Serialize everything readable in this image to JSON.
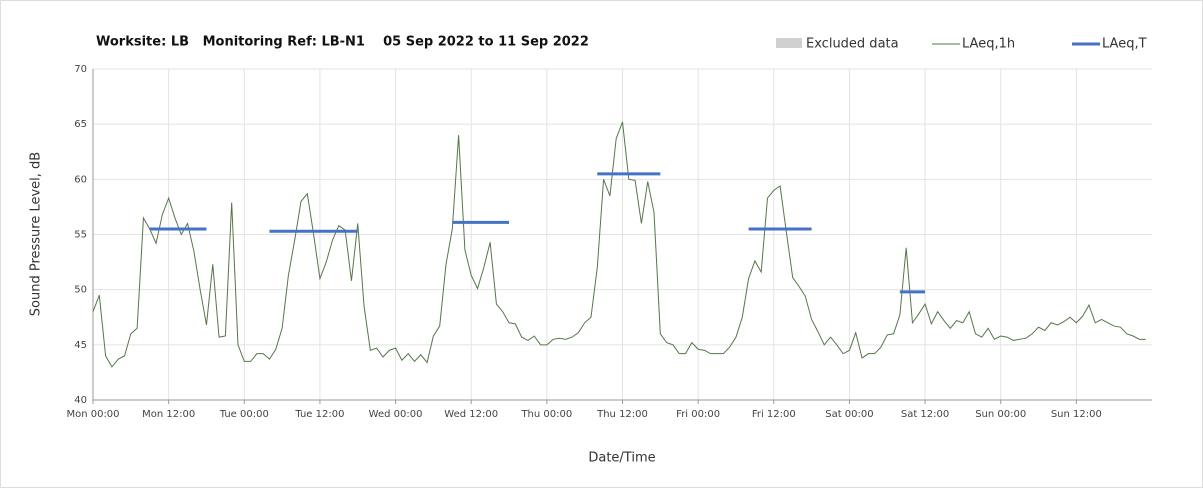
{
  "chart_data": {
    "type": "line",
    "title": "Worksite: LB   Monitoring Ref: LB-N1    05 Sep 2022 to 11 Sep 2022",
    "xlabel": "Date/Time",
    "ylabel": "Sound Pressure Level, dB",
    "xlim": [
      0,
      168
    ],
    "ylim": [
      40,
      70
    ],
    "yticks": [
      40,
      45,
      50,
      55,
      60,
      65,
      70
    ],
    "xticks": [
      {
        "value": 0,
        "label": "Mon 00:00"
      },
      {
        "value": 12,
        "label": "Mon 12:00"
      },
      {
        "value": 24,
        "label": "Tue 00:00"
      },
      {
        "value": 36,
        "label": "Tue 12:00"
      },
      {
        "value": 48,
        "label": "Wed 00:00"
      },
      {
        "value": 60,
        "label": "Wed 12:00"
      },
      {
        "value": 72,
        "label": "Thu 00:00"
      },
      {
        "value": 84,
        "label": "Thu 12:00"
      },
      {
        "value": 96,
        "label": "Fri 00:00"
      },
      {
        "value": 108,
        "label": "Fri 12:00"
      },
      {
        "value": 120,
        "label": "Sat 00:00"
      },
      {
        "value": 132,
        "label": "Sat 12:00"
      },
      {
        "value": 144,
        "label": "Sun 00:00"
      },
      {
        "value": 156,
        "label": "Sun 12:00"
      }
    ],
    "grid": true,
    "legend": "top-right",
    "excluded": {
      "name": "Excluded data",
      "color": "#d0d0d0"
    },
    "x": [
      0,
      1,
      2,
      3,
      4,
      5,
      6,
      7,
      8,
      9,
      10,
      11,
      12,
      13,
      14,
      15,
      16,
      17,
      18,
      19,
      20,
      21,
      22,
      23,
      24,
      25,
      26,
      27,
      28,
      29,
      30,
      31,
      32,
      33,
      34,
      35,
      36,
      37,
      38,
      39,
      40,
      41,
      42,
      43,
      44,
      45,
      46,
      47,
      48,
      49,
      50,
      51,
      52,
      53,
      54,
      55,
      56,
      57,
      58,
      59,
      60,
      61,
      62,
      63,
      64,
      65,
      66,
      67,
      68,
      69,
      70,
      71,
      72,
      73,
      74,
      75,
      76,
      77,
      78,
      79,
      80,
      81,
      82,
      83,
      84,
      85,
      86,
      87,
      88,
      89,
      90,
      91,
      92,
      93,
      94,
      95,
      96,
      97,
      98,
      99,
      100,
      101,
      102,
      103,
      104,
      105,
      106,
      107,
      108,
      109,
      110,
      111,
      112,
      113,
      114,
      115,
      116,
      117,
      118,
      119,
      120,
      121,
      122,
      123,
      124,
      125,
      126,
      127,
      128,
      129,
      130,
      131,
      132,
      133,
      134,
      135,
      136,
      137,
      138,
      139,
      140,
      141,
      142,
      143,
      144,
      145,
      146,
      147,
      148,
      149,
      150,
      151,
      152,
      153,
      154,
      155,
      156,
      157,
      158,
      159,
      160,
      161,
      162,
      163,
      164,
      165,
      166,
      167
    ],
    "series": [
      {
        "name": "LAeq,1h",
        "color": "#55774a",
        "values": [
          48,
          49.5,
          44,
          43,
          43.7,
          44,
          46,
          46.5,
          56.5,
          55.5,
          54.2,
          56.8,
          58.3,
          56.5,
          55,
          56,
          53.5,
          50,
          46.8,
          52.3,
          45.7,
          45.8,
          57.9,
          45,
          43.5,
          43.5,
          44.2,
          44.2,
          43.7,
          44.6,
          46.5,
          51.3,
          54.5,
          58,
          58.7,
          55,
          51,
          52.5,
          54.5,
          55.8,
          55.4,
          50.8,
          56,
          48.5,
          44.5,
          44.7,
          43.9,
          44.5,
          44.7,
          43.6,
          44.2,
          43.5,
          44.1,
          43.4,
          45.8,
          46.7,
          52.3,
          55.5,
          64,
          53.6,
          51.3,
          50.1,
          52,
          54.3,
          48.7,
          48,
          47,
          46.9,
          45.7,
          45.4,
          45.8,
          45,
          45,
          45.5,
          45.6,
          45.5,
          45.7,
          46.1,
          47,
          47.5,
          52,
          60,
          58.5,
          63.7,
          65.2,
          60,
          59.9,
          56,
          59.8,
          57,
          46,
          45.2,
          45,
          44.2,
          44.2,
          45.2,
          44.6,
          44.5,
          44.2,
          44.2,
          44.2,
          44.8,
          45.7,
          47.5,
          51,
          52.6,
          51.6,
          58.3,
          59,
          59.4,
          55.2,
          51.1,
          50.3,
          49.4,
          47.3,
          46.2,
          45,
          45.7,
          45,
          44.2,
          44.5,
          46.1,
          43.8,
          44.2,
          44.2,
          44.8,
          45.9,
          46,
          47.7,
          53.8,
          47,
          47.8,
          48.7,
          46.9,
          48,
          47.2,
          46.5,
          47.2,
          47,
          48,
          46,
          45.7,
          46.5,
          45.5,
          45.8,
          45.7,
          45.4,
          45.5,
          45.6,
          46,
          46.6,
          46.3,
          47,
          46.8,
          47.1,
          47.5,
          47,
          47.6,
          48.6,
          47,
          47.3,
          47,
          46.7,
          46.6,
          46,
          45.8,
          45.5,
          45.5
        ]
      },
      {
        "name": "LAeq,T",
        "color": "#4472c4",
        "segments": [
          {
            "x": [
              9,
              18
            ],
            "value": 55.5
          },
          {
            "x": [
              28,
              42
            ],
            "value": 55.3
          },
          {
            "x": [
              57,
              66
            ],
            "value": 56.1
          },
          {
            "x": [
              80,
              90
            ],
            "value": 60.5
          },
          {
            "x": [
              104,
              114
            ],
            "value": 55.5
          },
          {
            "x": [
              128,
              132
            ],
            "value": 49.8
          }
        ]
      }
    ]
  }
}
